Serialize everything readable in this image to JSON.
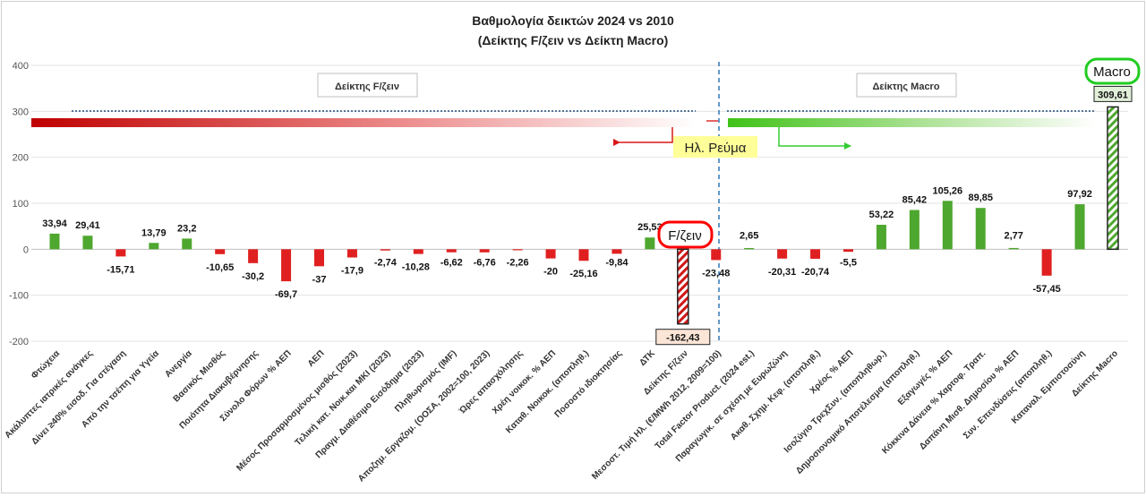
{
  "chart_data": {
    "type": "bar",
    "title": "Βαθμολογία δεικτών 2024 vs 2010",
    "subtitle": "(Δείκτης F/ζειν vs Δείκτη Macro)",
    "xlabel": "",
    "ylabel": "",
    "ylim": [
      -200,
      400
    ],
    "yticks": [
      400,
      300,
      200,
      100,
      0,
      -100,
      -200
    ],
    "grid": true,
    "categories": [
      "Φτώχεια",
      "Ακάλυπτες ιατρικές ανάγκες",
      "Δίνει ≥40% εισοδ. Για στέγαση",
      "Από την τσέπη για Υγεία",
      "Ανεργία",
      "Βασικός Μισθός",
      "Ποιότητα Διακυβέρνησης",
      "Σύνολο Φόρων % ΑΕΠ",
      "ΑΕΠ",
      "Μέσος Προσαρμοσμένος μισθός (2023)",
      "Τελική κατ. Νοικ.και ΜΚΙ (2023)",
      "Πραγμ. Διαθέσιμο Εισόδημα (2023)",
      "Πληθωρισμός (IMF)",
      "Αποζημ. Εργαζομ. (ΟΟΣΑ, 2002=100, 2023)",
      "Ώρες απασχόλησης",
      "Χρέη νοικοκ. % ΑΕΠ",
      "Καταθ. Νοικοκ. (αποπληθ.)",
      "Ποσοστό ιδιοκτησίας",
      "ΔΤΚ",
      "Δείκτης F/ζειν",
      "Μεσοστ. Τιμή Ηλ. (€/MWh 2012, 2009=100)",
      "Total Factor Product. (2024 est.)",
      "Παραγωγικ. σε σχέση με Ευρωζώνη",
      "Ακαθ. Σχημ. Κεφ. (αποπληθ.)",
      "Χρέος % ΑΕΠ",
      "Ισοζύγιο ΤρεχΣυν. (αποπληθωρ.)",
      "Δημοσιονομικό Αποτέλεσμα (αποπληθ.)",
      "Εξαγωγές % ΑΕΠ",
      "Κόκκινα Δάνεια % Χαρτοφ. Τραπ.",
      "Δαπάνη Μισθ. Δημοσίου % ΑΕΠ",
      "Συν. Επενδύσεις (αποπληθ.)",
      "Καταναλ. Εμπιστοσύνη",
      "Δείκτης Macro"
    ],
    "values": [
      33.94,
      29.41,
      -15.71,
      13.79,
      23.2,
      -10.65,
      -30.2,
      -69.7,
      -37,
      -17.9,
      -2.74,
      -10.28,
      -6.62,
      -6.76,
      -2.26,
      -20,
      -25.16,
      -9.84,
      25.53,
      -162.43,
      -23.48,
      2.65,
      -20.31,
      -20.74,
      -5.5,
      53.22,
      85.42,
      105.26,
      89.85,
      2.77,
      -57.45,
      97.92,
      309.61
    ],
    "data_labels": [
      "33,94",
      "29,41",
      "-15,71",
      "13,79",
      "23,2",
      "-10,65",
      "-30,2",
      "-69,7",
      "-37",
      "-17,9",
      "-2,74",
      "-10,28",
      "-6,62",
      "-6,76",
      "-2,26",
      "-20",
      "-25,16",
      "-9,84",
      "25,53",
      "-162,43",
      "-23,48",
      "2,65",
      "-20,31",
      "-20,74",
      "-5,5",
      "53,22",
      "85,42",
      "105,26",
      "89,85",
      "2,77",
      "-57,45",
      "97,92",
      "309,61"
    ],
    "highlighted_categories": [
      "Δείκτης F/ζειν",
      "Δείκτης Macro"
    ],
    "annotations": {
      "fzein_box_label": "Δείκτης F/ζειν",
      "macro_box_label": "Δείκτης Macro",
      "electricity_label": "Ηλ. Ρεύμα",
      "fzein_callout": "F/ζειν",
      "macro_callout": "Macro",
      "reference_line_value": 300
    },
    "colors": {
      "positive": "#4ea72e",
      "negative": "#e02020",
      "label_bg": "#ffff99"
    }
  }
}
